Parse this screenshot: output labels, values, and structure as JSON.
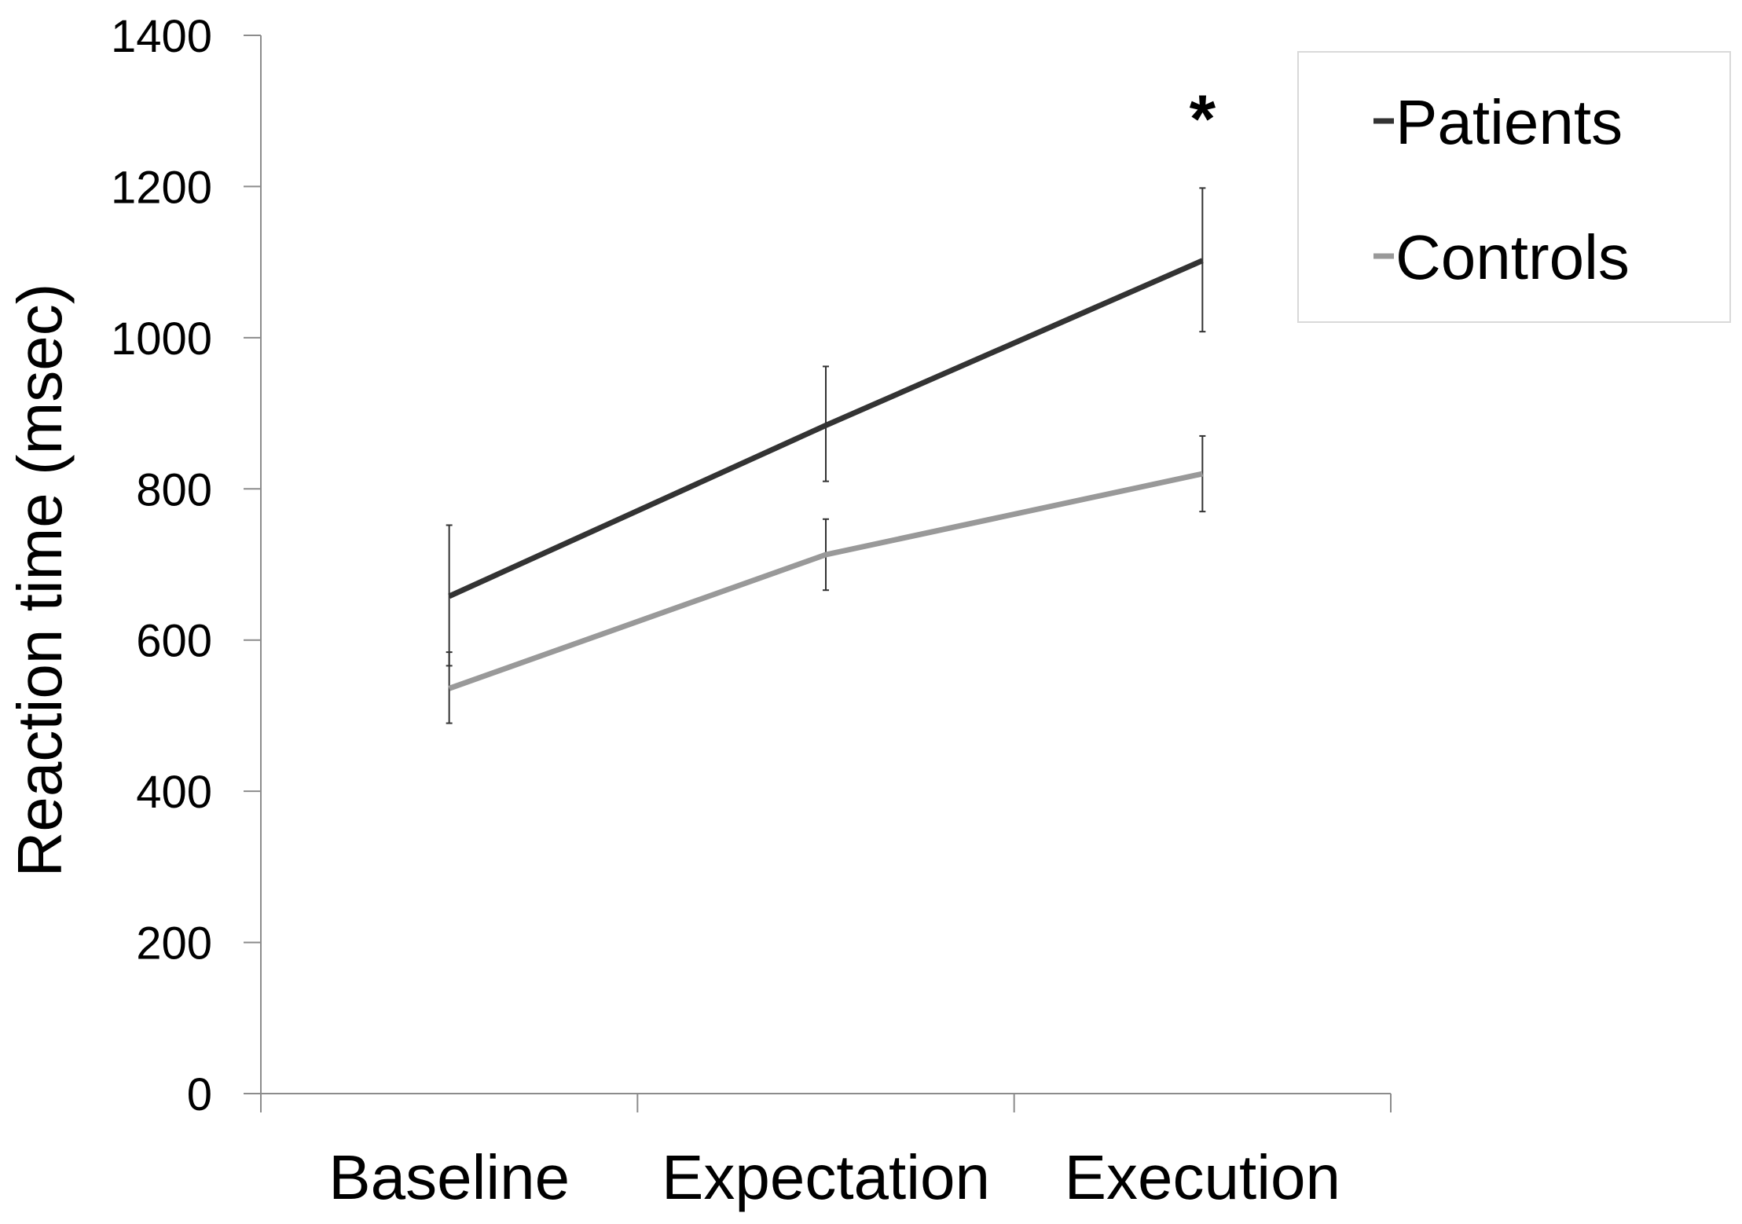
{
  "chart_data": {
    "type": "line",
    "title": "",
    "xlabel": "",
    "ylabel": "Reaction time (msec)",
    "categories": [
      "Baseline",
      "Expectation",
      "Execution"
    ],
    "ylim": [
      0,
      1400
    ],
    "yticks": [
      0,
      200,
      400,
      600,
      800,
      1000,
      1200,
      1400
    ],
    "grid": false,
    "legend_position": "top-right",
    "series": [
      {
        "name": "Patients",
        "color": "#333333",
        "values": [
          658,
          884,
          1102
        ],
        "error_low": [
          566,
          810,
          1008
        ],
        "error_high": [
          752,
          962,
          1198
        ]
      },
      {
        "name": "Controls",
        "color": "#999999",
        "values": [
          536,
          713,
          820
        ],
        "error_low": [
          490,
          666,
          770
        ],
        "error_high": [
          584,
          760,
          870
        ]
      }
    ],
    "annotations": [
      {
        "text": "*",
        "category": "Execution",
        "y": 1300
      }
    ]
  }
}
